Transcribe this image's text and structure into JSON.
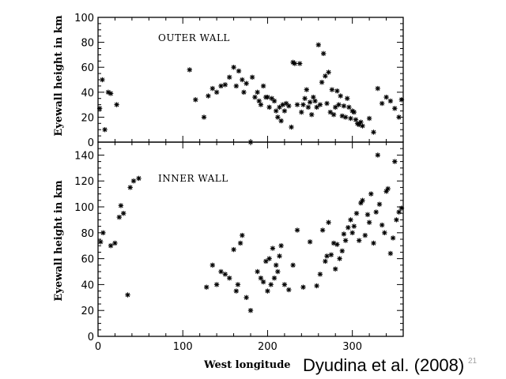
{
  "citation": "Dyudina et al. (2008)",
  "slide_number": "21",
  "chart_data": [
    {
      "type": "scatter",
      "title": "OUTER WALL",
      "xlabel": "",
      "ylabel": "Eyewall height in km",
      "xlim": [
        0,
        360
      ],
      "ylim": [
        0,
        100
      ],
      "xticks": [
        0,
        100,
        200,
        300
      ],
      "yticks": [
        0,
        20,
        40,
        60,
        80,
        100
      ],
      "x": [
        2,
        5,
        8,
        12,
        15,
        22,
        108,
        115,
        125,
        130,
        135,
        140,
        145,
        150,
        155,
        160,
        163,
        166,
        170,
        172,
        175,
        180,
        182,
        185,
        188,
        190,
        192,
        195,
        198,
        200,
        202,
        205,
        208,
        210,
        212,
        214,
        216,
        218,
        220,
        222,
        225,
        228,
        230,
        232,
        235,
        238,
        240,
        242,
        244,
        246,
        248,
        250,
        252,
        254,
        256,
        258,
        260,
        262,
        264,
        266,
        268,
        270,
        272,
        274,
        276,
        278,
        280,
        282,
        284,
        286,
        288,
        290,
        292,
        294,
        296,
        298,
        300,
        302,
        304,
        306,
        308,
        310,
        312,
        320,
        325,
        330,
        335,
        340,
        345,
        350,
        355,
        358
      ],
      "y": [
        27,
        50,
        10,
        40,
        39,
        30,
        58,
        34,
        20,
        37,
        43,
        40,
        45,
        46,
        52,
        60,
        45,
        57,
        50,
        40,
        47,
        0,
        52,
        36,
        40,
        33,
        30,
        45,
        36,
        36,
        28,
        35,
        33,
        25,
        20,
        28,
        17,
        30,
        25,
        31,
        29,
        12,
        64,
        63,
        30,
        63,
        24,
        30,
        35,
        42,
        28,
        32,
        22,
        36,
        33,
        28,
        78,
        30,
        48,
        71,
        53,
        31,
        56,
        24,
        42,
        22,
        28,
        41,
        30,
        37,
        21,
        29,
        20,
        35,
        28,
        19,
        25,
        24,
        18,
        15,
        14,
        16,
        13,
        19,
        8,
        43,
        31,
        36,
        33,
        27,
        20,
        34
      ]
    },
    {
      "type": "scatter",
      "title": "INNER WALL",
      "xlabel": "West longitude",
      "ylabel": "Eyewall height in km",
      "xlim": [
        0,
        360
      ],
      "ylim": [
        0,
        150
      ],
      "xticks": [
        0,
        100,
        200,
        300
      ],
      "yticks": [
        0,
        20,
        40,
        60,
        80,
        100,
        120,
        140
      ],
      "x": [
        3,
        6,
        15,
        20,
        25,
        27,
        30,
        35,
        38,
        42,
        48,
        128,
        135,
        140,
        145,
        150,
        155,
        160,
        163,
        165,
        168,
        170,
        175,
        180,
        188,
        192,
        195,
        198,
        200,
        202,
        204,
        206,
        208,
        210,
        212,
        214,
        216,
        220,
        225,
        230,
        235,
        242,
        250,
        258,
        262,
        265,
        268,
        270,
        272,
        275,
        278,
        280,
        282,
        285,
        288,
        290,
        292,
        295,
        298,
        300,
        302,
        305,
        308,
        310,
        312,
        315,
        318,
        320,
        322,
        325,
        328,
        330,
        332,
        335,
        338,
        340,
        342,
        345,
        348,
        350,
        352,
        355,
        358
      ],
      "y": [
        73,
        80,
        70,
        72,
        92,
        101,
        95,
        32,
        115,
        120,
        122,
        38,
        55,
        40,
        50,
        48,
        45,
        67,
        35,
        40,
        72,
        78,
        30,
        20,
        50,
        45,
        42,
        58,
        35,
        60,
        40,
        68,
        45,
        55,
        50,
        62,
        70,
        40,
        36,
        55,
        82,
        38,
        73,
        39,
        48,
        82,
        58,
        62,
        88,
        63,
        72,
        52,
        71,
        60,
        66,
        79,
        74,
        84,
        90,
        80,
        85,
        95,
        74,
        103,
        105,
        78,
        94,
        88,
        110,
        72,
        96,
        140,
        102,
        86,
        80,
        112,
        114,
        64,
        76,
        135,
        90,
        96,
        99
      ]
    }
  ]
}
